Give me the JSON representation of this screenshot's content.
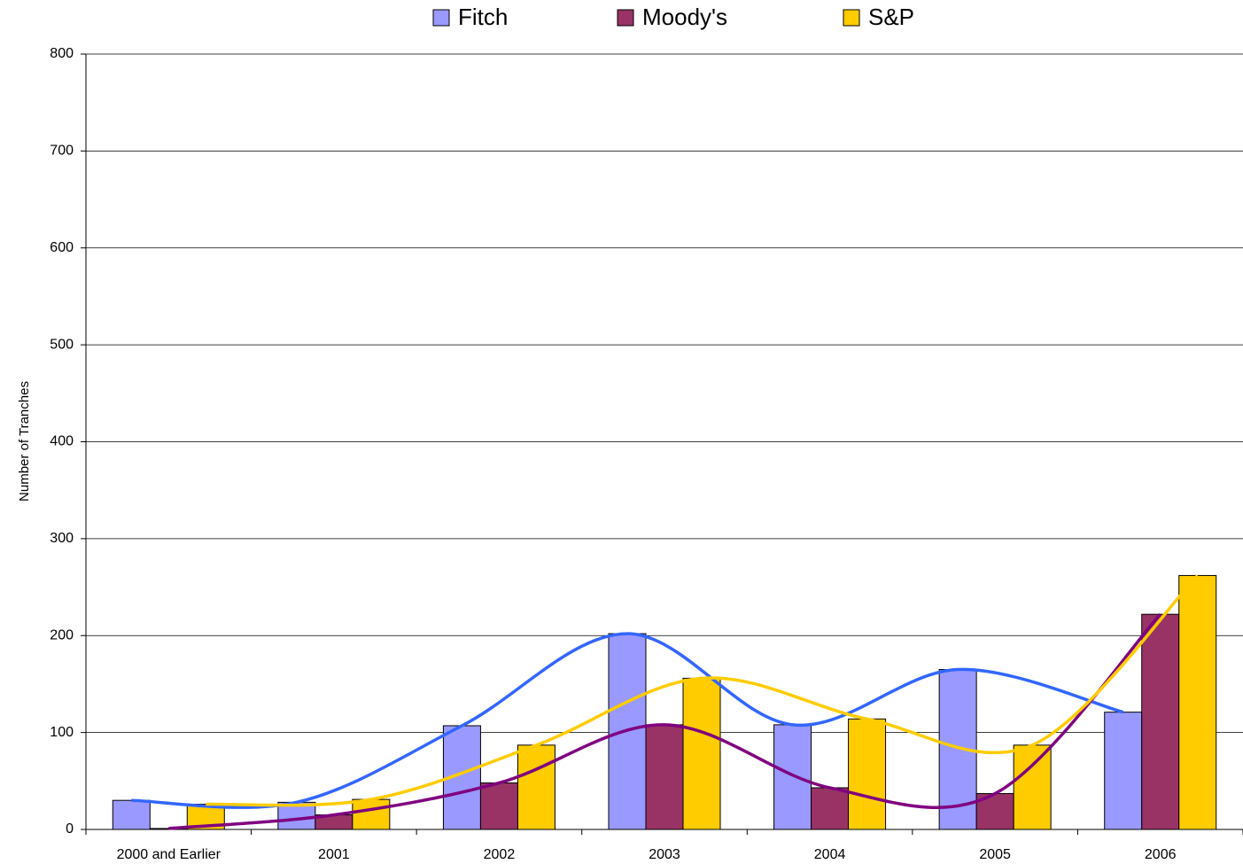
{
  "chart_data": {
    "type": "bar",
    "y_label": "Number of Tranches",
    "categories": [
      "2000 and Earlier",
      "2001",
      "2002",
      "2003",
      "2004",
      "2005",
      "2006"
    ],
    "series": [
      {
        "name": "Fitch",
        "color": "#9999ff",
        "line_color": "#3366ff",
        "values": [
          30,
          28,
          107,
          202,
          108,
          165,
          121
        ]
      },
      {
        "name": "Moody's",
        "color": "#993366",
        "line_color": "#800080",
        "values": [
          1,
          15,
          48,
          108,
          43,
          37,
          222
        ]
      },
      {
        "name": "S&P",
        "color": "#ffcc00",
        "line_color": "#ffcc00",
        "values": [
          26,
          31,
          87,
          156,
          114,
          87,
          262
        ]
      }
    ],
    "ylim": [
      0,
      800
    ],
    "yticks": [
      0,
      100,
      200,
      300,
      400,
      500,
      600,
      700,
      800
    ],
    "grid": true,
    "smooth_lines": true,
    "legend": "top"
  }
}
